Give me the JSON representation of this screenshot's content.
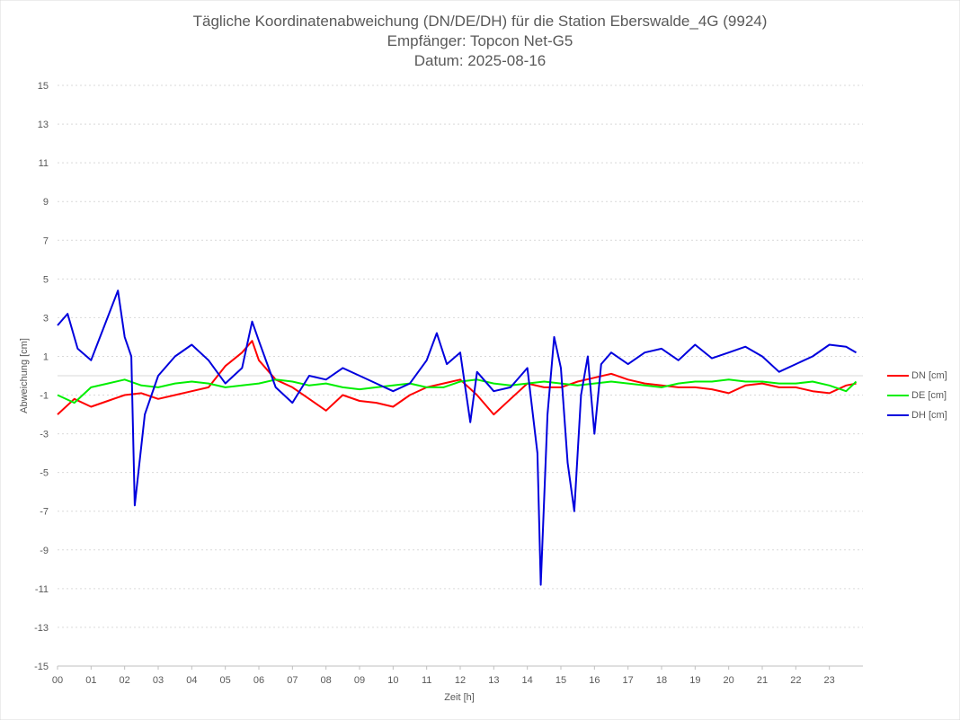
{
  "chart_data": {
    "type": "line",
    "title": "Tägliche Koordinatenabweichung (DN/DE/DH) für die Station Eberswalde_4G (9924)",
    "subtitle": "Empfänger: Topcon Net-G5",
    "date_line": "Datum: 2025-08-16",
    "xlabel": "Zeit [h]",
    "ylabel": "Abweichung [cm]",
    "ylim": [
      -15,
      15
    ],
    "xlim": [
      0,
      24
    ],
    "y_ticks": [
      "-15",
      "-13",
      "-11",
      "-9",
      "-7",
      "-5",
      "-3",
      "-1",
      "1",
      "3",
      "5",
      "7",
      "9",
      "11",
      "13",
      "15"
    ],
    "x_ticks": [
      "00",
      "01",
      "02",
      "03",
      "04",
      "05",
      "06",
      "07",
      "08",
      "09",
      "10",
      "11",
      "12",
      "13",
      "14",
      "15",
      "16",
      "17",
      "18",
      "19",
      "20",
      "21",
      "22",
      "23"
    ],
    "legend_position": "right",
    "series": [
      {
        "name": "DN [cm]",
        "color": "#ff0000",
        "x": [
          0,
          0.5,
          1,
          1.5,
          2,
          2.5,
          3,
          3.5,
          4,
          4.5,
          5,
          5.5,
          5.8,
          6,
          6.5,
          7,
          7.5,
          8,
          8.5,
          9,
          9.5,
          10,
          10.5,
          11,
          11.5,
          12,
          12.5,
          13,
          13.5,
          14,
          14.5,
          15,
          15.5,
          16,
          16.5,
          17,
          17.5,
          18,
          18.5,
          19,
          19.5,
          20,
          20.5,
          21,
          21.5,
          22,
          22.5,
          23,
          23.5,
          23.8
        ],
        "values": [
          -2.0,
          -1.2,
          -1.6,
          -1.3,
          -1.0,
          -0.9,
          -1.2,
          -1.0,
          -0.8,
          -0.6,
          0.5,
          1.2,
          1.8,
          0.8,
          -0.2,
          -0.6,
          -1.2,
          -1.8,
          -1.0,
          -1.3,
          -1.4,
          -1.6,
          -1.0,
          -0.6,
          -0.4,
          -0.2,
          -1.0,
          -2.0,
          -1.2,
          -0.4,
          -0.6,
          -0.6,
          -0.3,
          -0.1,
          0.1,
          -0.2,
          -0.4,
          -0.5,
          -0.6,
          -0.6,
          -0.7,
          -0.9,
          -0.5,
          -0.4,
          -0.6,
          -0.6,
          -0.8,
          -0.9,
          -0.5,
          -0.4
        ]
      },
      {
        "name": "DE [cm]",
        "color": "#00ee00",
        "x": [
          0,
          0.5,
          1,
          1.5,
          2,
          2.5,
          3,
          3.5,
          4,
          4.5,
          5,
          5.5,
          6,
          6.5,
          7,
          7.5,
          8,
          8.5,
          9,
          9.5,
          10,
          10.5,
          11,
          11.5,
          12,
          12.5,
          13,
          13.5,
          14,
          14.5,
          15,
          15.5,
          16,
          16.5,
          17,
          17.5,
          18,
          18.5,
          19,
          19.5,
          20,
          20.5,
          21,
          21.5,
          22,
          22.5,
          23,
          23.5,
          23.8
        ],
        "values": [
          -1.0,
          -1.4,
          -0.6,
          -0.4,
          -0.2,
          -0.5,
          -0.6,
          -0.4,
          -0.3,
          -0.4,
          -0.6,
          -0.5,
          -0.4,
          -0.2,
          -0.3,
          -0.5,
          -0.4,
          -0.6,
          -0.7,
          -0.6,
          -0.5,
          -0.4,
          -0.6,
          -0.6,
          -0.3,
          -0.2,
          -0.4,
          -0.5,
          -0.4,
          -0.3,
          -0.4,
          -0.5,
          -0.4,
          -0.3,
          -0.4,
          -0.5,
          -0.6,
          -0.4,
          -0.3,
          -0.3,
          -0.2,
          -0.3,
          -0.3,
          -0.4,
          -0.4,
          -0.3,
          -0.5,
          -0.8,
          -0.3
        ]
      },
      {
        "name": "DH [cm]",
        "color": "#0000dd",
        "x": [
          0,
          0.3,
          0.6,
          1,
          1.4,
          1.8,
          2,
          2.2,
          2.3,
          2.6,
          3,
          3.5,
          4,
          4.5,
          5,
          5.5,
          5.8,
          6,
          6.5,
          7,
          7.5,
          8,
          8.5,
          9,
          9.5,
          10,
          10.5,
          11,
          11.3,
          11.6,
          12,
          12.3,
          12.5,
          13,
          13.5,
          14,
          14.3,
          14.4,
          14.6,
          14.8,
          15,
          15.2,
          15.4,
          15.6,
          15.8,
          16,
          16.2,
          16.5,
          17,
          17.5,
          18,
          18.5,
          19,
          19.5,
          20,
          20.5,
          21,
          21.5,
          22,
          22.5,
          23,
          23.5,
          23.8
        ],
        "values": [
          2.6,
          3.2,
          1.4,
          0.8,
          2.6,
          4.4,
          2.0,
          1.0,
          -6.7,
          -2.0,
          0.0,
          1.0,
          1.6,
          0.8,
          -0.4,
          0.4,
          2.8,
          1.8,
          -0.6,
          -1.4,
          0.0,
          -0.2,
          0.4,
          0.0,
          -0.4,
          -0.8,
          -0.4,
          0.8,
          2.2,
          0.6,
          1.2,
          -2.4,
          0.2,
          -0.8,
          -0.6,
          0.4,
          -4.0,
          -10.8,
          -2.0,
          2.0,
          0.4,
          -4.5,
          -7.0,
          -1.0,
          1.0,
          -3.0,
          0.6,
          1.2,
          0.6,
          1.2,
          1.4,
          0.8,
          1.6,
          0.9,
          1.2,
          1.5,
          1.0,
          0.2,
          0.6,
          1.0,
          1.6,
          1.5,
          1.2
        ]
      }
    ]
  }
}
